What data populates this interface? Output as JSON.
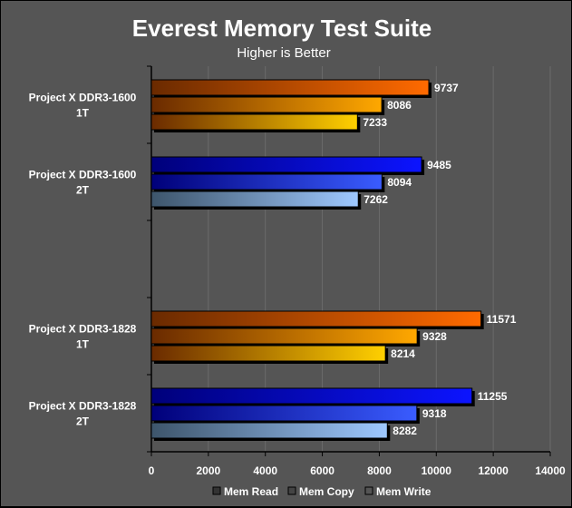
{
  "chart_data": {
    "type": "bar",
    "orientation": "horizontal",
    "title": "Everest Memory Test Suite",
    "subtitle": "Higher is Better",
    "xlim": [
      0,
      14000
    ],
    "xticks": [
      0,
      2000,
      4000,
      6000,
      8000,
      10000,
      12000,
      14000
    ],
    "grid": true,
    "legend_position": "bottom",
    "series_names": [
      "Mem Read",
      "Mem Copy",
      "Mem Write"
    ],
    "groups": [
      {
        "label_lines": [
          "Project X DDR3-1600",
          "1T"
        ],
        "palette": "orange",
        "values": [
          9737,
          8086,
          7233
        ]
      },
      {
        "label_lines": [
          "Project X DDR3-1600",
          "2T"
        ],
        "palette": "blue",
        "values": [
          9485,
          8094,
          7262
        ]
      },
      {
        "label_lines": [
          "",
          ""
        ],
        "palette": "none",
        "values": []
      },
      {
        "label_lines": [
          "Project X DDR3-1828",
          "1T"
        ],
        "palette": "orange",
        "values": [
          11571,
          9328,
          8214
        ]
      },
      {
        "label_lines": [
          "Project X DDR3-1828",
          "2T"
        ],
        "palette": "blue",
        "values": [
          11255,
          9318,
          8282
        ]
      }
    ],
    "colors": {
      "background": "#555555",
      "grid": "#6b6b6b",
      "axis": "#000000",
      "orange": [
        "#ff6a00",
        "#ffa800",
        "#ffd000"
      ],
      "blue": [
        "#0c14ff",
        "#3a5cff",
        "#9ec8ff"
      ]
    }
  }
}
